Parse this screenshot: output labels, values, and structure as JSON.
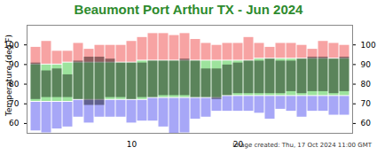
{
  "chart_data": {
    "type": "bar",
    "title": "Beaumont Port Arthur TX - Jun 2024",
    "y_label": "Temperature (deg F)",
    "caption": "Image created: Thu, 17 Oct 2024 11:00 GMT",
    "x": [
      1,
      2,
      3,
      4,
      5,
      6,
      7,
      8,
      9,
      10,
      11,
      12,
      13,
      14,
      15,
      16,
      17,
      18,
      19,
      20,
      21,
      22,
      23,
      24,
      25,
      26,
      27,
      28,
      29,
      30
    ],
    "xticks": [
      10,
      20
    ],
    "ylim": [
      55,
      110
    ],
    "yticks": [
      60,
      70,
      80,
      90,
      100
    ],
    "record_high": [
      99,
      102,
      97,
      97,
      101,
      98,
      100,
      100,
      100,
      102,
      104,
      106,
      106,
      105,
      106,
      103,
      101,
      100,
      101,
      101,
      104,
      101,
      99,
      101,
      101,
      100,
      98,
      102,
      101,
      100
    ],
    "normal_high": [
      90,
      90,
      90,
      91,
      91,
      91,
      91,
      91,
      91,
      91,
      92,
      92,
      92,
      92,
      92,
      92,
      92,
      92,
      92,
      92,
      92,
      93,
      93,
      93,
      93,
      93,
      93,
      93,
      93,
      93
    ],
    "normal_low": [
      71,
      71,
      71,
      71,
      72,
      72,
      72,
      72,
      72,
      72,
      72,
      73,
      73,
      73,
      73,
      73,
      73,
      73,
      74,
      74,
      74,
      74,
      74,
      74,
      74,
      74,
      74,
      74,
      74,
      74
    ],
    "record_low": [
      56,
      55,
      57,
      58,
      63,
      60,
      63,
      63,
      63,
      60,
      61,
      61,
      58,
      54,
      55,
      62,
      63,
      66,
      66,
      66,
      66,
      65,
      62,
      67,
      66,
      63,
      66,
      66,
      64,
      64
    ],
    "observed_high": [
      91,
      87,
      88,
      85,
      92,
      94,
      94,
      93,
      91,
      91,
      91,
      92,
      92,
      92,
      93,
      92,
      88,
      88,
      90,
      91,
      92,
      92,
      93,
      92,
      92,
      93,
      94,
      94,
      93,
      94
    ],
    "observed_low": [
      72,
      73,
      73,
      73,
      72,
      69,
      69,
      73,
      73,
      72,
      73,
      73,
      74,
      74,
      74,
      73,
      73,
      72,
      74,
      75,
      75,
      75,
      75,
      75,
      76,
      75,
      76,
      76,
      75,
      76
    ],
    "colors": {
      "record_high": "#f7a3a3",
      "normal": "#9de39d",
      "record_low": "#a7a7f7",
      "observed": "#000000"
    },
    "grid": false
  }
}
